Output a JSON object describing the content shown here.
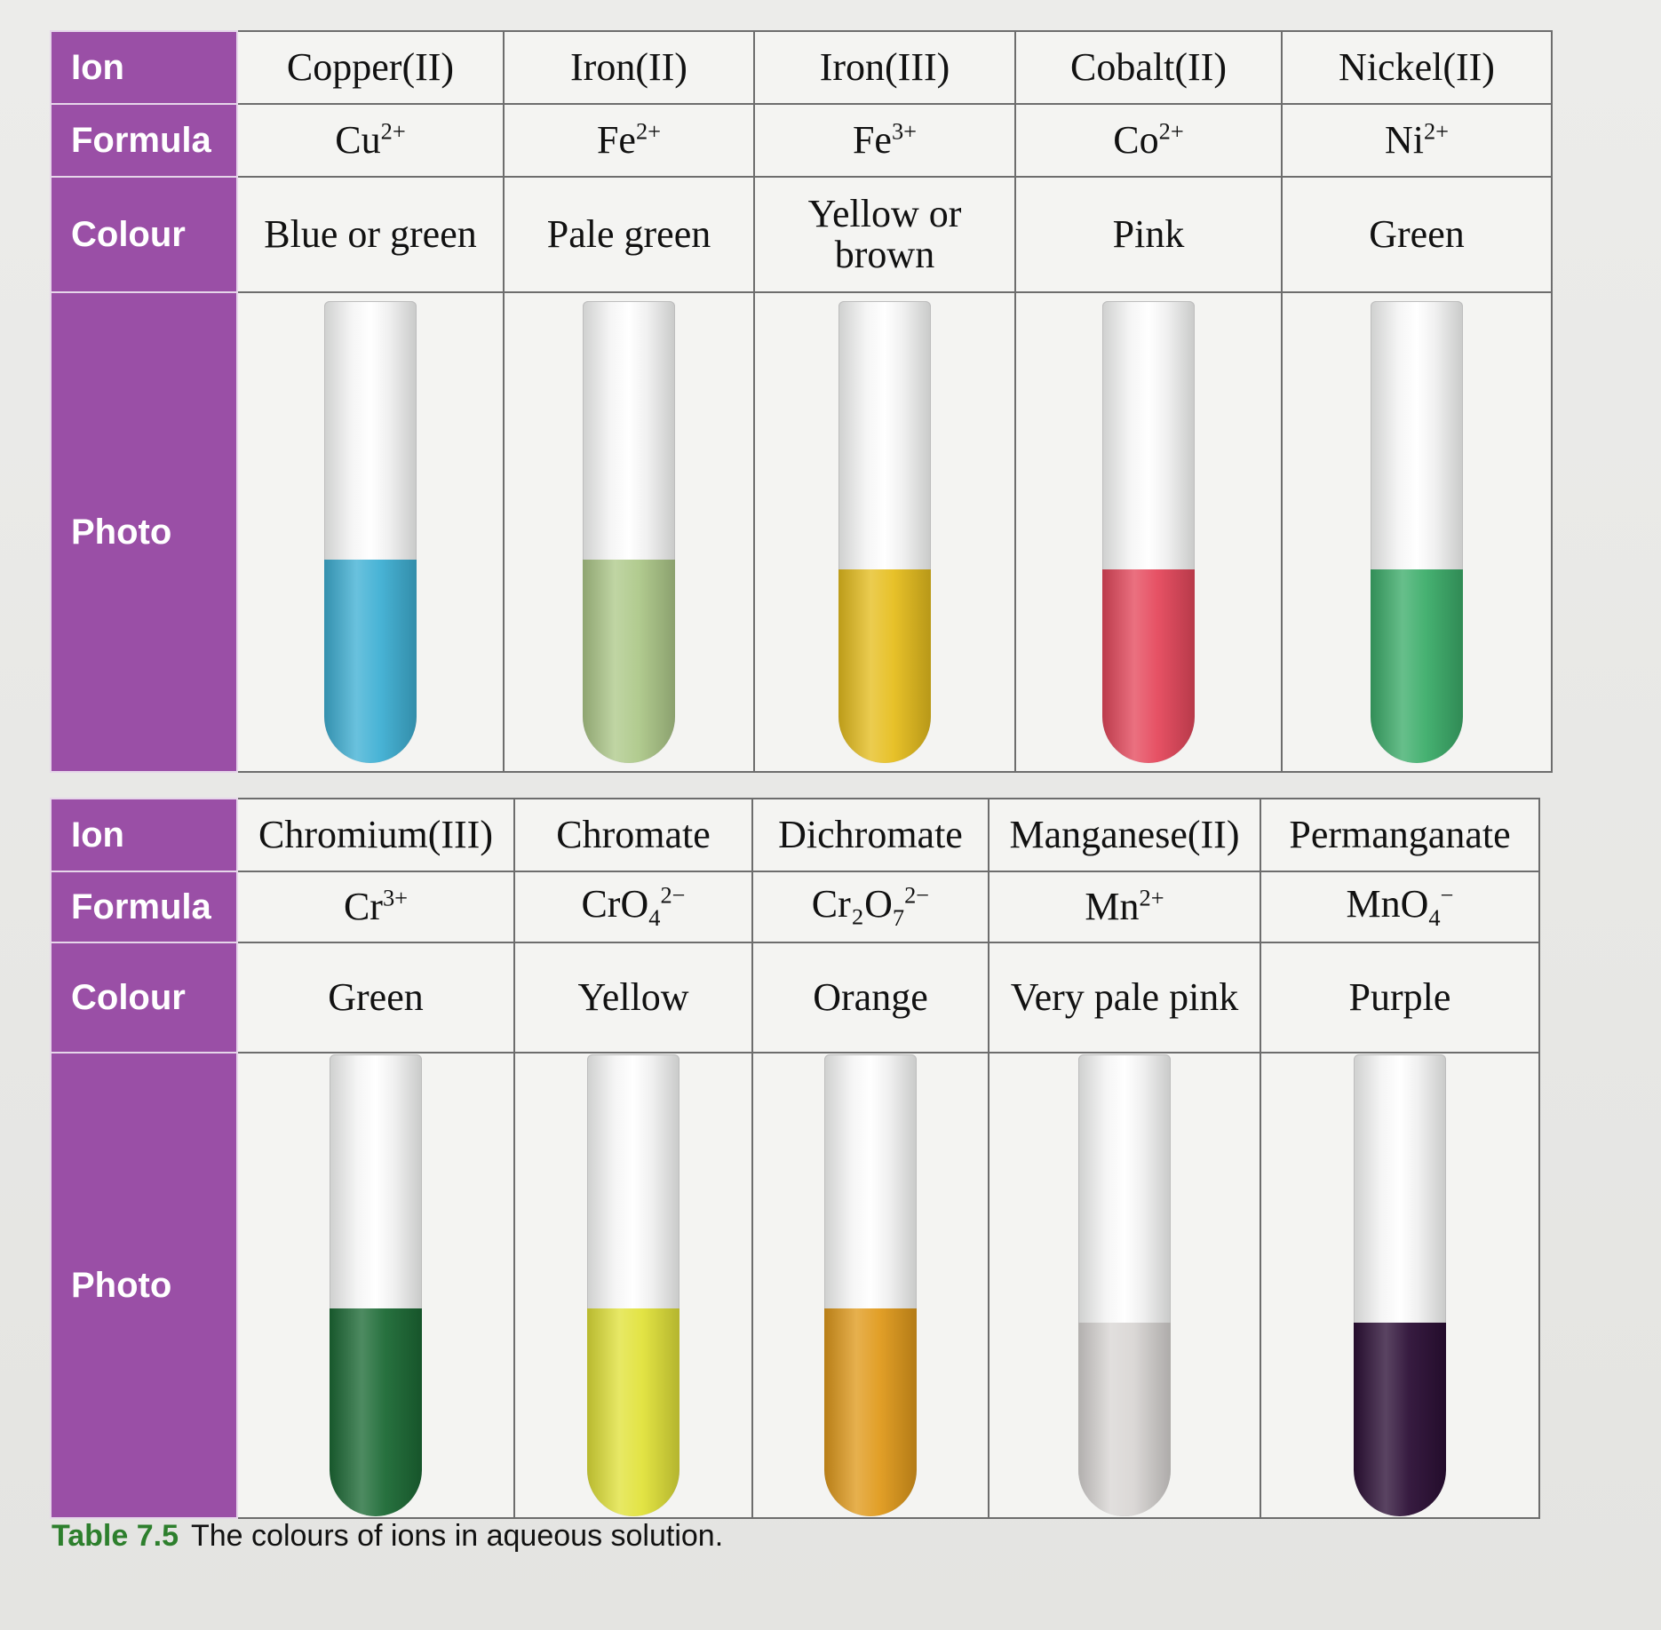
{
  "row_labels": {
    "ion": "Ion",
    "formula": "Formula",
    "colour": "Colour",
    "photo": "Photo"
  },
  "table_top": [
    {
      "ion": "Copper(II)",
      "sym": "Cu",
      "sub": "",
      "sup": "2+",
      "colour": "Blue or green",
      "liquid": "#3fb0d4",
      "fill": 0.44
    },
    {
      "ion": "Iron(II)",
      "sym": "Fe",
      "sub": "",
      "sup": "2+",
      "colour": "Pale green",
      "liquid": "#aec98a",
      "fill": 0.44
    },
    {
      "ion": "Iron(III)",
      "sym": "Fe",
      "sub": "",
      "sup": "3+",
      "colour": "Yellow or brown",
      "liquid": "#e6be1e",
      "fill": 0.42
    },
    {
      "ion": "Cobalt(II)",
      "sym": "Co",
      "sub": "",
      "sup": "2+",
      "colour": "Pink",
      "liquid": "#e5485c",
      "fill": 0.42
    },
    {
      "ion": "Nickel(II)",
      "sym": "Ni",
      "sub": "",
      "sup": "2+",
      "colour": "Green",
      "liquid": "#3cad6a",
      "fill": 0.42
    }
  ],
  "table_bottom": [
    {
      "ion": "Chromium(III)",
      "sym": "Cr",
      "sub": "",
      "sup": "3+",
      "colour": "Green",
      "liquid": "#1c6a35",
      "fill": 0.45
    },
    {
      "ion": "Chromate",
      "sym": "CrO",
      "sub": "4",
      "sup": "2−",
      "colour": "Yellow",
      "liquid": "#e1e23a",
      "fill": 0.45
    },
    {
      "ion": "Dichromate",
      "sym": "Cr₂O",
      "sub": "7",
      "sup": "2−",
      "colour": "Orange",
      "liquid": "#e09a1c",
      "fill": 0.45
    },
    {
      "ion": "Manganese(II)",
      "sym": "Mn",
      "sub": "",
      "sup": "2+",
      "colour": "Very pale pink",
      "liquid": "#d9d6d4",
      "fill": 0.42
    },
    {
      "ion": "Permanganate",
      "sym": "MnO",
      "sub": "4",
      "sup": "−",
      "colour": "Purple",
      "liquid": "#2c0f36",
      "fill": 0.42
    }
  ],
  "caption": {
    "number": "Table 7.5",
    "text": "The colours of ions in aqueous solution."
  }
}
